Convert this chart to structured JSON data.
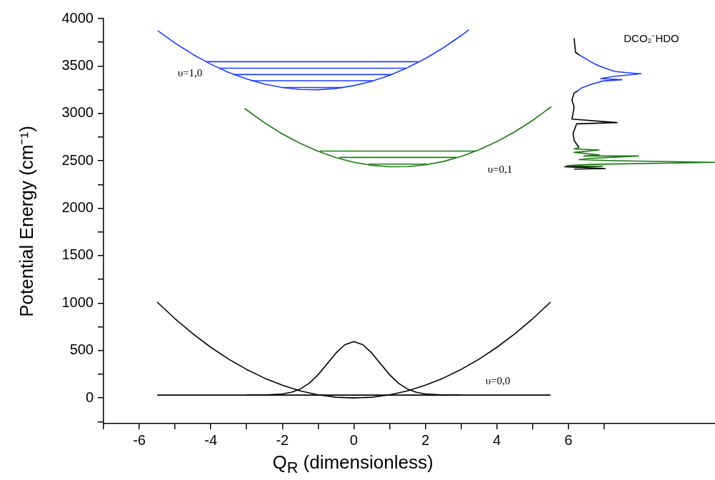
{
  "chart_data": {
    "type": "line",
    "xlabel": "Q$_{R}$ (dimensionless)",
    "ylabel": "Potential Energy (cm⁻¹)",
    "xlim": [
      -7,
      10.1
    ],
    "xticks": [
      {
        "value": -7,
        "label": null
      },
      -6,
      {
        "value": -5,
        "label": null
      },
      -4,
      {
        "value": -3,
        "label": null
      },
      -2,
      {
        "value": -1,
        "label": null
      },
      0,
      {
        "value": 1,
        "label": null
      },
      2,
      {
        "value": 3,
        "label": null
      },
      4,
      {
        "value": 5,
        "label": null
      },
      6,
      {
        "value": 7,
        "label": null
      }
    ],
    "ylim": [
      -270,
      4000
    ],
    "yticks": [
      {
        "value": -250,
        "label": null
      },
      0,
      {
        "value": 250,
        "label": null
      },
      500,
      {
        "value": 750,
        "label": null
      },
      1000,
      {
        "value": 1250,
        "label": null
      },
      1500,
      {
        "value": 1750,
        "label": null
      },
      2000,
      {
        "value": 2250,
        "label": null
      },
      2500,
      {
        "value": 2750,
        "label": null
      },
      3000,
      {
        "value": 3250,
        "label": null
      },
      3500,
      {
        "value": 3750,
        "label": null
      },
      4000
    ],
    "grid": false,
    "legend": false,
    "marker": "none",
    "line_style": "solid",
    "series": [
      {
        "color": "#1f3dff",
        "x": [
          -5.48,
          -5,
          -4.5,
          -4,
          -3.5,
          -3,
          -2.5,
          -2,
          -1.5,
          -1,
          -0.5,
          0,
          0.5,
          1,
          1.5,
          2,
          2.5,
          3,
          3.22
        ],
        "values": [
          3871,
          3741,
          3622,
          3519,
          3432,
          3363,
          3309,
          3273,
          3253,
          3250,
          3263,
          3293,
          3339,
          3402,
          3482,
          3578,
          3691,
          3821,
          3883
        ]
      },
      {
        "color": "#1f3dff",
        "x": [
          -4.12,
          1.79
        ],
        "values": [
          3545,
          3545
        ]
      },
      {
        "color": "#1f3dff",
        "x": [
          -3.78,
          1.46
        ],
        "values": [
          3477,
          3477
        ]
      },
      {
        "color": "#1f3dff",
        "x": [
          -3.37,
          1.05
        ],
        "values": [
          3410,
          3410
        ]
      },
      {
        "color": "#1f3dff",
        "x": [
          -2.87,
          0.54
        ],
        "values": [
          3345,
          3345
        ]
      },
      {
        "color": "#1f3dff",
        "x": [
          -2.01,
          -0.3
        ],
        "values": [
          3273,
          3273
        ]
      },
      {
        "color": "#1a7a10",
        "x": [
          -3.06,
          -2.5,
          -2,
          -1.5,
          -1,
          -0.5,
          0,
          0.5,
          1,
          1.5,
          2,
          2.5,
          3,
          3.5,
          4,
          4.5,
          5,
          5.52
        ],
        "values": [
          3053,
          2901,
          2784,
          2684,
          2601,
          2534,
          2485,
          2453,
          2437,
          2439,
          2458,
          2493,
          2546,
          2616,
          2703,
          2806,
          2927,
          3070
        ]
      },
      {
        "color": "#1a7a10",
        "x": [
          -0.95,
          3.4
        ],
        "values": [
          2603,
          2603
        ]
      },
      {
        "color": "#1a7a10",
        "x": [
          -0.41,
          2.87
        ],
        "values": [
          2536,
          2536
        ]
      },
      {
        "color": "#1a7a10",
        "x": [
          0.41,
          2.05
        ],
        "values": [
          2466,
          2466
        ]
      },
      {
        "color": "#000000",
        "x": [
          -5.5,
          -5,
          -4.5,
          -4,
          -3.5,
          -3,
          -2.5,
          -2,
          -1.5,
          -1,
          -0.5,
          0,
          0.5,
          1,
          1.5,
          2,
          2.5,
          3,
          3.5,
          4,
          4.5,
          5,
          5.5
        ],
        "values": [
          1010,
          835,
          676,
          534,
          409,
          301,
          209,
          134,
          75,
          33,
          8,
          0,
          8,
          33,
          75,
          134,
          209,
          301,
          409,
          534,
          676,
          835,
          1010
        ]
      },
      {
        "color": "#000000",
        "x": [
          -5.5,
          5.5
        ],
        "values": [
          30,
          30
        ]
      },
      {
        "color": "#000000",
        "x": [
          -3,
          -2.5,
          -2,
          -1.75,
          -1.5,
          -1.25,
          -1,
          -0.75,
          -0.5,
          -0.25,
          0,
          0.25,
          0.5,
          0.75,
          1,
          1.25,
          1.5,
          1.75,
          2,
          2.5,
          3
        ],
        "values": [
          30,
          31,
          42,
          59,
          94,
          155,
          245,
          358,
          474,
          562,
          595,
          562,
          474,
          358,
          245,
          155,
          94,
          59,
          42,
          31,
          30
        ]
      },
      {
        "color": "#000000",
        "x": [
          6.16,
          6.2,
          6.3
        ],
        "values": [
          3794,
          3644,
          3618
        ]
      },
      {
        "color": "#1f3dff",
        "x": [
          6.3,
          6.63,
          6.83,
          7.1,
          7.3,
          7.63,
          8.03,
          7.3,
          6.9,
          7.5,
          6.96,
          6.63,
          6.36,
          6.26
        ],
        "values": [
          3618,
          3543,
          3505,
          3468,
          3443,
          3430,
          3418,
          3392,
          3367,
          3355,
          3342,
          3305,
          3267,
          3237
        ]
      },
      {
        "color": "#000000",
        "x": [
          6.26,
          6.16,
          6.1,
          6.16,
          6.1,
          7.36,
          6.23,
          6.13,
          6.16,
          6.3
        ],
        "values": [
          3237,
          3216,
          3141,
          3066,
          2940,
          2903,
          2890,
          2790,
          2714,
          2639
        ]
      },
      {
        "color": "#1a7a10",
        "x": [
          6.3,
          6.16,
          6.86,
          6.16,
          6.86,
          6.43,
          7.96,
          6.63,
          6.3,
          7.3,
          10.1,
          6.63,
          5.96,
          6.96
        ],
        "values": [
          2639,
          2626,
          2614,
          2589,
          2564,
          2551,
          2551,
          2526,
          2513,
          2501,
          2484,
          2463,
          2451,
          2443
        ]
      },
      {
        "color": "#000000",
        "x": [
          6.96,
          5.9,
          7.03,
          6.16
        ],
        "values": [
          2443,
          2438,
          2418,
          2413
        ]
      }
    ],
    "annotations": [
      "υ=1,0",
      "υ=0,1",
      "υ=0,0",
      "DCO₂⁻HDO"
    ]
  }
}
